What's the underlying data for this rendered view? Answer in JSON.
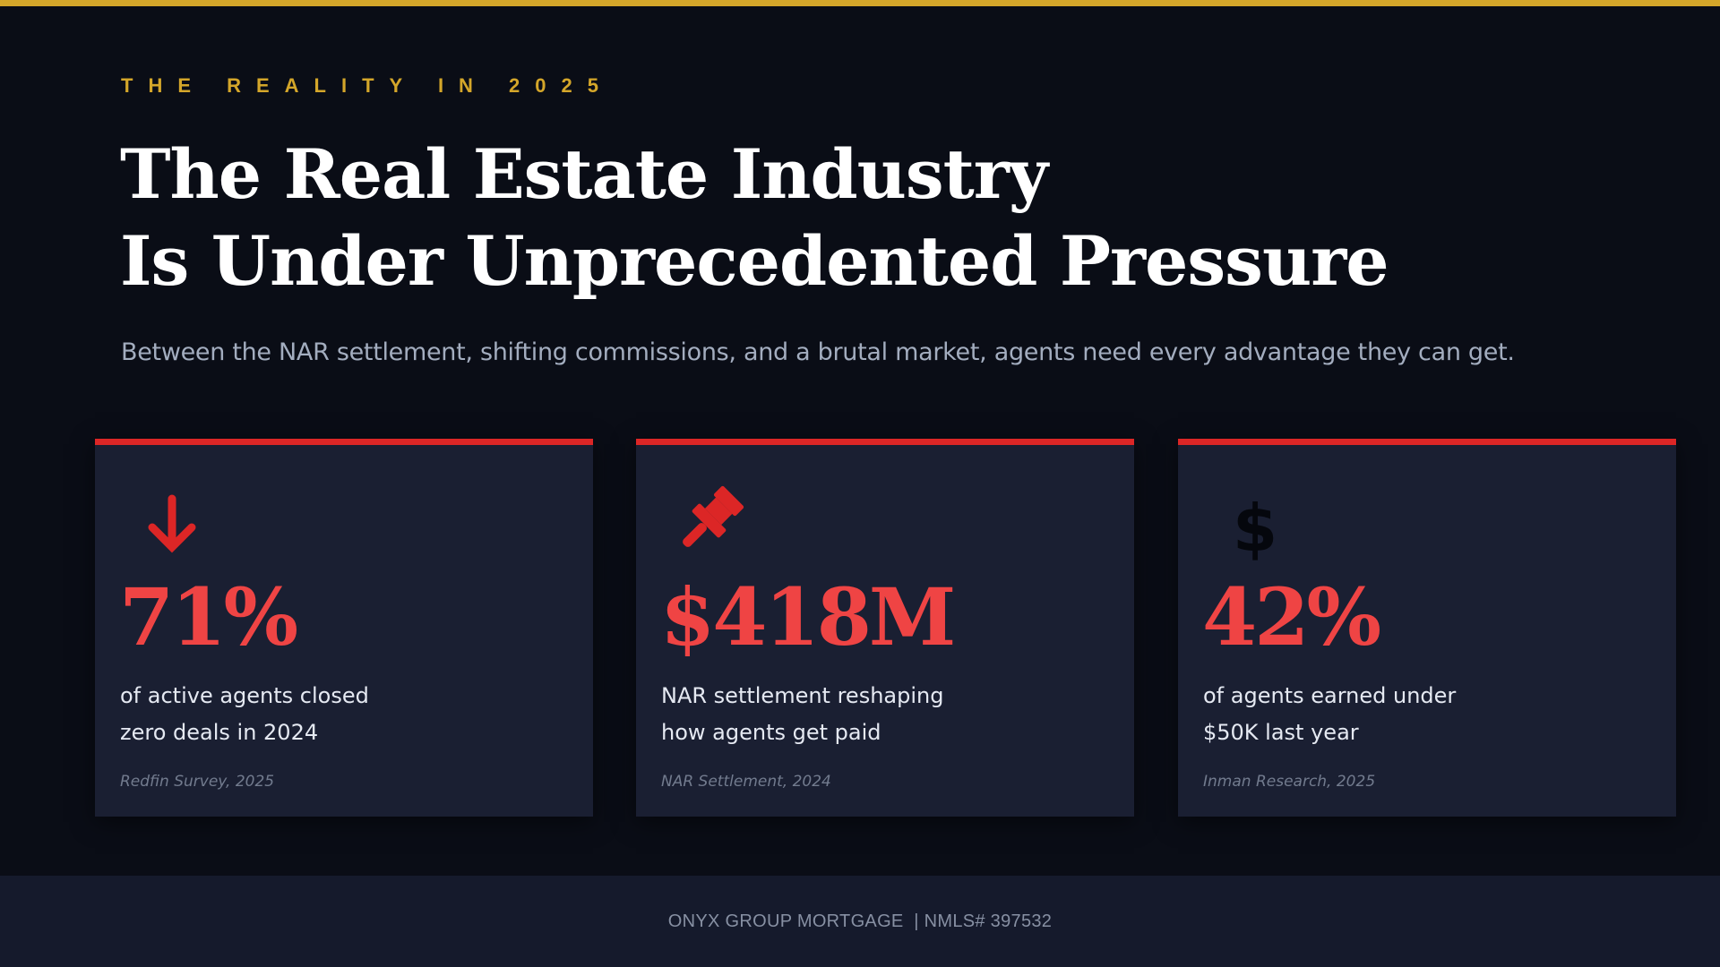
{
  "colors": {
    "accent_gold": "#d4a62a",
    "accent_red": "#dc2626",
    "stat_red": "#ef4444",
    "background": "#0a0d16",
    "card": "#1a1f32"
  },
  "header": {
    "eyebrow": "THE REALITY IN 2025",
    "title_line1": "The Real Estate Industry",
    "title_line2": "Is Under Unprecedented Pressure",
    "subtitle": "Between the NAR settlement, shifting commissions, and a brutal market, agents need every advantage they can get."
  },
  "cards": [
    {
      "icon": "arrow-down-icon",
      "stat": "71%",
      "desc_line1": "of active agents closed",
      "desc_line2": "zero deals in 2024",
      "source": "Redfin Survey, 2025"
    },
    {
      "icon": "gavel-icon",
      "stat": "$418M",
      "desc_line1": "NAR settlement reshaping",
      "desc_line2": "how agents get paid",
      "source": "NAR Settlement, 2024"
    },
    {
      "icon": "dollar-icon",
      "stat": "42%",
      "desc_line1": "of agents earned under",
      "desc_line2": "$50K last year",
      "source": "Inman Research, 2025"
    }
  ],
  "footer": {
    "text": "ONYX GROUP MORTGAGE  | NMLS# 397532"
  }
}
